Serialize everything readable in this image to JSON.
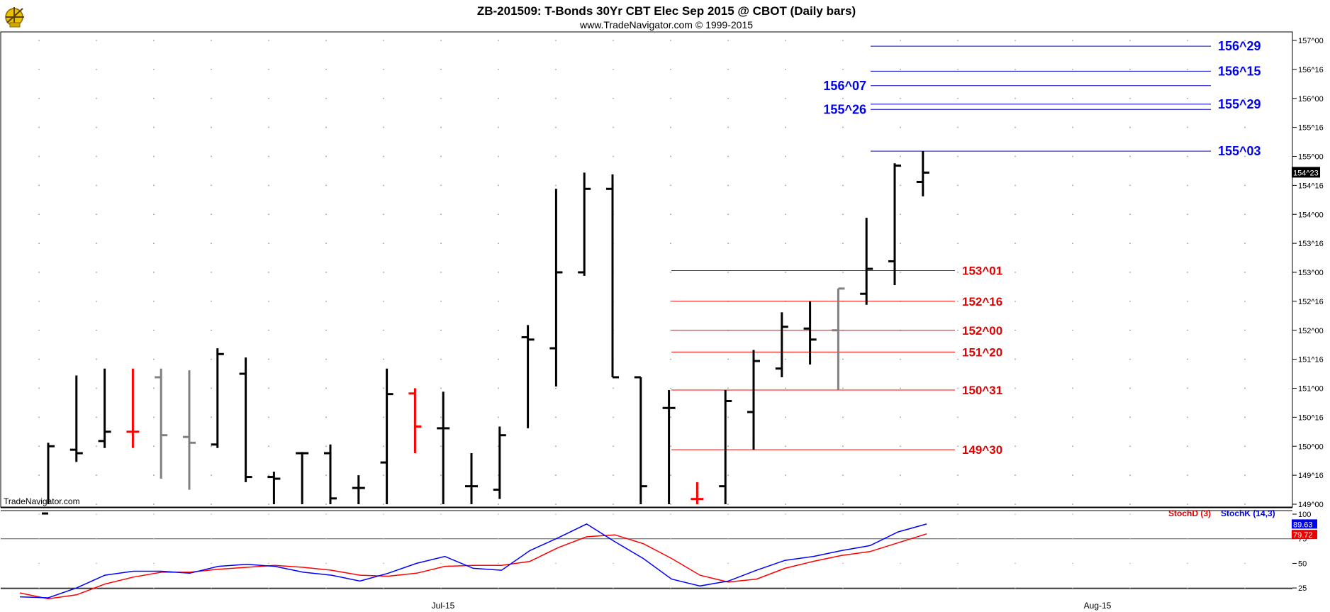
{
  "header": {
    "title": "ZB-201509:  T-Bonds 30Yr CBT Elec Sep 2015 @ CBOT  (Daily bars)",
    "subtitle": "www.TradeNavigator.com © 1999-2015",
    "watermark": "TradeNavigator.com"
  },
  "chart_data": [
    {
      "type": "ohlc",
      "price_axis_labels": [
        "157^00",
        "156^16",
        "156^00",
        "155^16",
        "155^00",
        "154^16",
        "154^00",
        "153^16",
        "153^00",
        "152^16",
        "152^00",
        "151^16",
        "151^00",
        "150^16",
        "150^00",
        "149^16",
        "149^00"
      ],
      "ylim": [
        149.0,
        157.0
      ],
      "last_price": "154^23",
      "x_labels": [
        "Jul-15",
        "Aug-15"
      ],
      "bar_colors": {
        "up": "#000000",
        "gray": "#808080",
        "red": "#ff0000",
        "green": "#00cc00"
      },
      "bars": [
        {
          "o": 148.84,
          "h": 150.06,
          "l": 148.6,
          "c": 150.0,
          "color": "black"
        },
        {
          "o": 149.94,
          "h": 151.22,
          "l": 149.73,
          "c": 149.88,
          "color": "black"
        },
        {
          "o": 150.09,
          "h": 151.34,
          "l": 149.97,
          "c": 150.25,
          "color": "black"
        },
        {
          "o": 150.25,
          "h": 151.34,
          "l": 149.97,
          "c": 150.25,
          "color": "red"
        },
        {
          "o": 151.19,
          "h": 151.34,
          "l": 149.44,
          "c": 150.19,
          "color": "gray"
        },
        {
          "o": 150.16,
          "h": 151.31,
          "l": 149.25,
          "c": 150.06,
          "color": "gray"
        },
        {
          "o": 150.03,
          "h": 151.69,
          "l": 149.97,
          "c": 151.59,
          "color": "black"
        },
        {
          "o": 151.25,
          "h": 151.53,
          "l": 149.38,
          "c": 149.47,
          "color": "black"
        },
        {
          "o": 149.47,
          "h": 149.56,
          "l": 148.6,
          "c": 149.44,
          "color": "black"
        },
        {
          "o": 149.88,
          "h": 149.9,
          "l": 148.6,
          "c": 149.88,
          "color": "black"
        },
        {
          "o": 149.88,
          "h": 150.03,
          "l": 148.6,
          "c": 149.1,
          "color": "black"
        },
        {
          "o": 149.28,
          "h": 149.5,
          "l": 148.6,
          "c": 149.28,
          "color": "black"
        },
        {
          "o": 149.72,
          "h": 151.34,
          "l": 148.6,
          "c": 150.9,
          "color": "black"
        },
        {
          "o": 150.91,
          "h": 151.0,
          "l": 149.88,
          "c": 150.34,
          "color": "red"
        },
        {
          "o": 150.31,
          "h": 150.94,
          "l": 148.6,
          "c": 150.31,
          "color": "black"
        },
        {
          "o": 149.31,
          "h": 149.88,
          "l": 148.6,
          "c": 149.31,
          "color": "black"
        },
        {
          "o": 149.25,
          "h": 150.34,
          "l": 149.09,
          "c": 150.19,
          "color": "black"
        },
        {
          "o": 151.88,
          "h": 152.09,
          "l": 150.31,
          "c": 151.84,
          "color": "black"
        },
        {
          "o": 151.69,
          "h": 154.44,
          "l": 151.03,
          "c": 153.0,
          "color": "black"
        },
        {
          "o": 153.0,
          "h": 154.72,
          "l": 152.94,
          "c": 154.44,
          "color": "black"
        },
        {
          "o": 154.44,
          "h": 154.69,
          "l": 151.19,
          "c": 151.19,
          "color": "black"
        },
        {
          "o": 151.19,
          "h": 151.19,
          "l": 149.0,
          "c": 149.31,
          "color": "black"
        },
        {
          "o": 150.66,
          "h": 150.97,
          "l": 148.6,
          "c": 150.66,
          "color": "black"
        },
        {
          "o": 149.09,
          "h": 149.38,
          "l": 148.6,
          "c": 149.09,
          "color": "red"
        },
        {
          "o": 149.31,
          "h": 150.97,
          "l": 148.6,
          "c": 150.78,
          "color": "black"
        },
        {
          "o": 150.59,
          "h": 151.66,
          "l": 149.94,
          "c": 151.47,
          "color": "black"
        },
        {
          "o": 151.34,
          "h": 152.31,
          "l": 151.19,
          "c": 152.06,
          "color": "black"
        },
        {
          "o": 152.03,
          "h": 152.5,
          "l": 151.41,
          "c": 151.84,
          "color": "black"
        },
        {
          "o": 152.0,
          "h": 152.72,
          "l": 150.97,
          "c": 152.72,
          "color": "gray"
        },
        {
          "o": 152.63,
          "h": 153.94,
          "l": 152.44,
          "c": 153.06,
          "color": "black"
        },
        {
          "o": 153.19,
          "h": 154.88,
          "l": 152.78,
          "c": 154.84,
          "color": "black"
        },
        {
          "o": 154.56,
          "h": 155.09,
          "l": 154.31,
          "c": 154.72,
          "color": "black"
        }
      ],
      "red_levels": [
        {
          "label": "153^01",
          "value": 153.03
        },
        {
          "label": "152^16",
          "value": 152.5
        },
        {
          "label": "152^00",
          "value": 152.0
        },
        {
          "label": "151^20",
          "value": 151.625
        },
        {
          "label": "150^31",
          "value": 150.97
        },
        {
          "label": "149^30",
          "value": 149.94
        }
      ],
      "blue_levels": [
        {
          "label": "156^29",
          "value": 156.9
        },
        {
          "label": "156^15",
          "value": 156.47
        },
        {
          "label": "156^07",
          "value": 156.22
        },
        {
          "label": "155^29",
          "value": 155.9
        },
        {
          "label": "155^26",
          "value": 155.81
        },
        {
          "label": "155^03",
          "value": 155.09
        }
      ]
    },
    {
      "type": "line",
      "ylim": [
        15,
        100
      ],
      "tick_labels": [
        "100",
        "75",
        "50",
        "25"
      ],
      "tick_values": [
        100,
        75,
        50,
        25
      ],
      "series": [
        {
          "name": "StochK (14,3)",
          "color": "#0000ff",
          "last": "89.63",
          "values": [
            16,
            15,
            25,
            38,
            42,
            42,
            40,
            47,
            49,
            47,
            41,
            38,
            32,
            40,
            50,
            57,
            45,
            43,
            63,
            76,
            90,
            72,
            55,
            34,
            27,
            32,
            43,
            53,
            57,
            63,
            68,
            82,
            90
          ]
        },
        {
          "name": "StochD (3)",
          "color": "#ff0000",
          "last": "79.72",
          "values": [
            20,
            14,
            18,
            29,
            36,
            41,
            41,
            44,
            46,
            48,
            46,
            43,
            38,
            37,
            40,
            47,
            48,
            48,
            52,
            66,
            77,
            79,
            70,
            55,
            38,
            31,
            34,
            45,
            52,
            58,
            62,
            71,
            80
          ]
        }
      ]
    }
  ]
}
